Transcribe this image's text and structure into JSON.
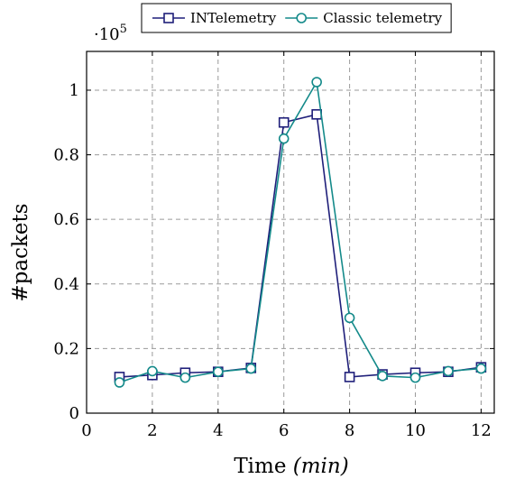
{
  "chart_data": {
    "type": "line",
    "xlabel_main": "Time ",
    "xlabel_unit": "(min)",
    "ylabel": "#packets",
    "y_multiplier_base": "·10",
    "y_multiplier_exp": "5",
    "xlim": [
      0,
      12.4
    ],
    "ylim": [
      0,
      1.12
    ],
    "x_ticks": [
      0,
      2,
      4,
      6,
      8,
      10,
      12
    ],
    "x_tick_labels": [
      "0",
      "2",
      "4",
      "6",
      "8",
      "10",
      "12"
    ],
    "y_ticks": [
      0,
      0.2,
      0.4,
      0.6,
      0.8,
      1
    ],
    "y_tick_labels": [
      "0",
      "0.2",
      "0.4",
      "0.6",
      "0.8",
      "1"
    ],
    "grid": true,
    "legend_position": "top",
    "series": [
      {
        "name": "INTelemetry",
        "color": "#1f1f7a",
        "marker": "square",
        "x": [
          1,
          2,
          3,
          4,
          5,
          6,
          7,
          8,
          9,
          10,
          11,
          12
        ],
        "y": [
          0.112,
          0.118,
          0.125,
          0.128,
          0.14,
          0.9,
          0.925,
          0.112,
          0.12,
          0.125,
          0.128,
          0.142
        ]
      },
      {
        "name": "Classic telemetry",
        "color": "#148a8a",
        "marker": "circle",
        "x": [
          1,
          2,
          3,
          4,
          5,
          6,
          7,
          8,
          9,
          10,
          11,
          12
        ],
        "y": [
          0.095,
          0.13,
          0.11,
          0.128,
          0.138,
          0.85,
          1.025,
          0.295,
          0.115,
          0.11,
          0.13,
          0.138
        ]
      }
    ]
  }
}
